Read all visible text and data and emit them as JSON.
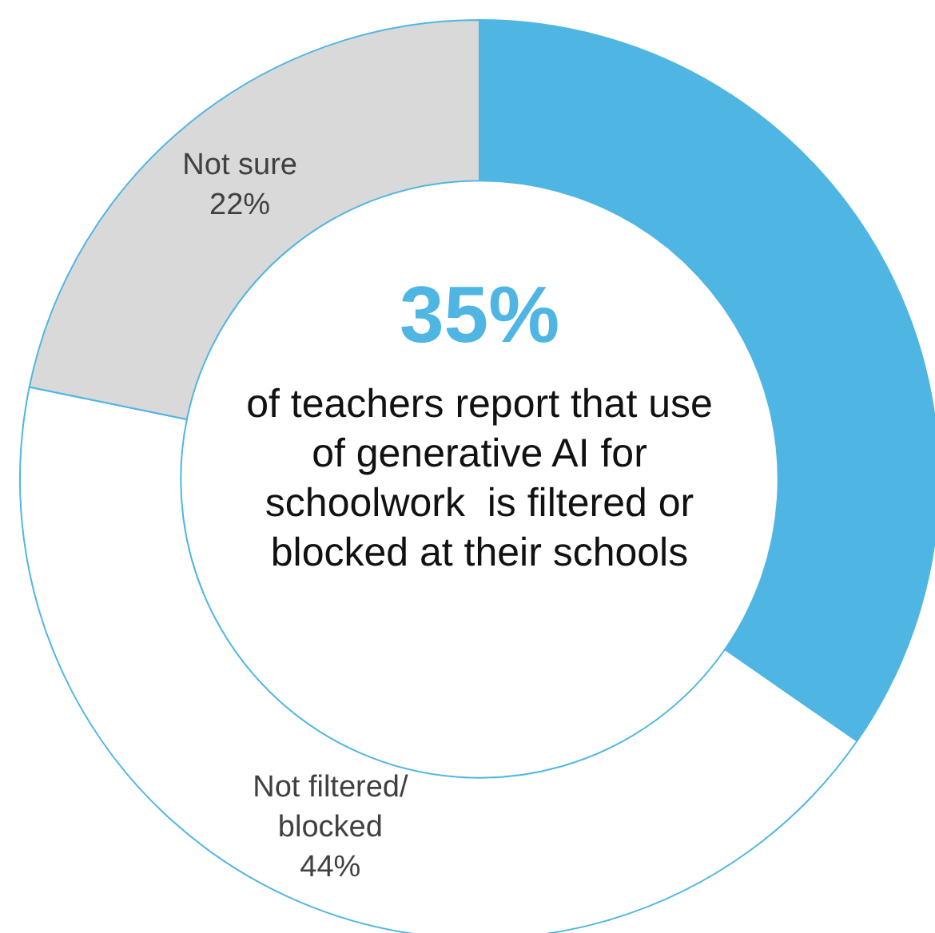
{
  "chart_data": {
    "type": "donut",
    "categories": [
      null,
      "Not filtered/\nblocked",
      "Not sure"
    ],
    "values": [
      35,
      44,
      22
    ],
    "value_labels": [
      "35%",
      "44%",
      "22%"
    ],
    "colors": [
      "#4fb6e3",
      "#ffffff",
      "#d9d9d9"
    ],
    "annotations": [
      "of teachers report that use of generative AI for schoolwork  is filtered or blocked at their schools"
    ],
    "legend": false
  }
}
